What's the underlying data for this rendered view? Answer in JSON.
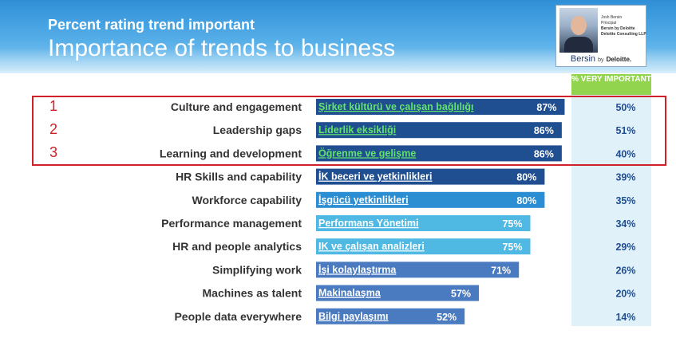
{
  "header": {
    "subtitle": "Percent rating trend important",
    "title": "Importance of trends to business"
  },
  "badge": {
    "name": "Josh Bersin",
    "role": "Principal",
    "org1": "Bersin by Deloitte",
    "org2": "Deloitte Consulting LLP",
    "logo_main": "Bersin",
    "logo_by": "by",
    "logo_deloitte": "Deloitte."
  },
  "column_header": "% VERY IMPORTANT",
  "ranks": [
    "1",
    "2",
    "3"
  ],
  "colors": {
    "bar_dark": "#1f4e91",
    "bar_mid": "#2c8ed2",
    "bar_light": "#4fb8e3",
    "bar_purple": "#4a7ac0",
    "highlight": "#d0202a",
    "header_green": "#93d44f"
  },
  "chart_data": {
    "type": "bar",
    "orientation": "horizontal",
    "xlim": [
      0,
      100
    ],
    "categories": [
      "Culture and engagement",
      "Leadership gaps",
      "Learning and development",
      "HR Skills and capability",
      "Workforce capability",
      "Performance management",
      "HR and people analytics",
      "Simplifying work",
      "Machines as talent",
      "People data everywhere"
    ],
    "translations": [
      "Şirket kültürü ve çalışan bağlılığı",
      "Liderlik eksikliği",
      "Öğrenme ve gelişme",
      "İK beceri ve yetkinlikleri",
      "İşgücü yetkinlikleri",
      "Performans Yönetimi",
      "IK ve çalışan analizleri",
      "İşi kolaylaştırma",
      "Makinalaşma",
      "Bilgi paylaşımı"
    ],
    "series": [
      {
        "name": "Percent rating trend important",
        "values": [
          87,
          86,
          86,
          80,
          80,
          75,
          75,
          71,
          57,
          52
        ],
        "labels": [
          "87%",
          "86%",
          "86%",
          "80%",
          "80%",
          "75%",
          "75%",
          "71%",
          "57%",
          "52%"
        ]
      },
      {
        "name": "% VERY IMPORTANT",
        "values": [
          50,
          51,
          40,
          39,
          35,
          34,
          29,
          26,
          20,
          14
        ],
        "labels": [
          "50%",
          "51%",
          "40%",
          "39%",
          "35%",
          "34%",
          "29%",
          "26%",
          "20%",
          "14%"
        ]
      }
    ],
    "bar_colors": [
      "#1f4e91",
      "#1f4e91",
      "#1f4e91",
      "#1f4e91",
      "#2c8ed2",
      "#4fb8e3",
      "#4fb8e3",
      "#4a7ac0",
      "#4a7ac0",
      "#4a7ac0"
    ]
  }
}
